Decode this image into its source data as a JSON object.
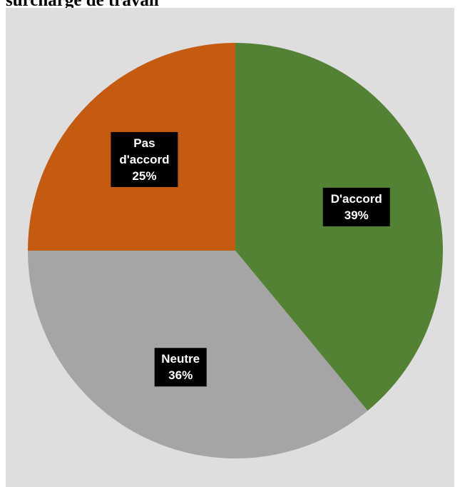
{
  "chart_data": {
    "type": "pie",
    "title": "surcharge de travail",
    "slices": [
      {
        "label_lines": [
          "D'accord"
        ],
        "label": "D'accord",
        "value": 39,
        "pct_text": "39%",
        "color": "#548235"
      },
      {
        "label_lines": [
          "Neutre"
        ],
        "label": "Neutre",
        "value": 36,
        "pct_text": "36%",
        "color": "#a5a5a5"
      },
      {
        "label_lines": [
          "Pas",
          "d'accord"
        ],
        "label": "Pas d'accord",
        "value": 25,
        "pct_text": "25%",
        "color": "#c55a11"
      }
    ],
    "background": "#dedede",
    "label_box_color": "#000000",
    "label_text_color": "#ffffff"
  }
}
